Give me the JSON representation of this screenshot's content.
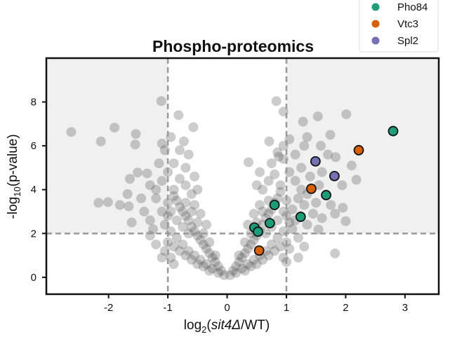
{
  "chart_data": {
    "type": "scatter",
    "title": "Phospho-proteomics",
    "xlabel": {
      "prefix": "log",
      "sub": "2",
      "open": "(",
      "italic": "sit4Δ",
      "rest": "/WT)"
    },
    "ylabel": {
      "prefix": "-log",
      "sub": "10",
      "rest": "(p-value)"
    },
    "xlim": [
      -3.05,
      3.57
    ],
    "ylim": [
      -0.77,
      10.0
    ],
    "xticks": [
      -2,
      -1,
      0,
      1,
      2,
      3
    ],
    "yticks": [
      0,
      2,
      4,
      6,
      8
    ],
    "xtick_labels": [
      "-2",
      "-1",
      "0",
      "1",
      "2",
      "3"
    ],
    "ytick_labels": [
      "0",
      "2",
      "4",
      "6",
      "8"
    ],
    "thresholds": {
      "x": [
        -1,
        1
      ],
      "y": 2
    },
    "shaded_region_color": "#f0f0f0",
    "grid": false,
    "legend_position": "top-right",
    "background_color": "#555555",
    "background_points": [
      [
        -2.63,
        6.63
      ],
      [
        -1.9,
        6.83
      ],
      [
        -2.13,
        6.2
      ],
      [
        -1.54,
        6.54
      ],
      [
        -1.55,
        6.06
      ],
      [
        -1.11,
        8.04
      ],
      [
        -0.82,
        7.4
      ],
      [
        -0.57,
        6.85
      ],
      [
        -0.73,
        6.2
      ],
      [
        -2.17,
        3.4
      ],
      [
        -2.01,
        3.43
      ],
      [
        -1.81,
        3.3
      ],
      [
        -1.66,
        3.24
      ],
      [
        -1.68,
        3.8
      ],
      [
        -1.64,
        4.49
      ],
      [
        -1.51,
        4.78
      ],
      [
        -1.35,
        4.74
      ],
      [
        -1.61,
        2.5
      ],
      [
        1.53,
        7.34
      ],
      [
        2.01,
        7.44
      ],
      [
        1.28,
        7.1
      ],
      [
        1.74,
        6.5
      ],
      [
        2.1,
        5.1
      ],
      [
        2.18,
        4.45
      ],
      [
        2.0,
        2.56
      ],
      [
        1.82,
        1.09
      ],
      [
        1.94,
        4.2
      ],
      [
        1.83,
        5.48
      ],
      [
        1.58,
        6.0
      ],
      [
        0.71,
        6.2
      ],
      [
        0.87,
        5.5
      ],
      [
        0.36,
        5.25
      ],
      [
        1.35,
        6.4
      ],
      [
        1.95,
        3.17
      ],
      [
        1.82,
        2.9
      ],
      [
        1.54,
        2.18
      ],
      [
        0.83,
        8.04
      ],
      [
        0.95,
        7.56
      ],
      [
        -0.05,
        0.1
      ],
      [
        -0.1,
        0.3
      ],
      [
        -0.15,
        0.5
      ],
      [
        -0.2,
        0.7
      ],
      [
        -0.25,
        0.9
      ],
      [
        -0.3,
        1.1
      ],
      [
        -0.35,
        1.3
      ],
      [
        -0.4,
        1.5
      ],
      [
        -0.45,
        1.7
      ],
      [
        -0.5,
        1.9
      ],
      [
        -0.55,
        2.1
      ],
      [
        -0.6,
        2.3
      ],
      [
        -0.65,
        2.6
      ],
      [
        -0.7,
        2.8
      ],
      [
        -0.75,
        3.0
      ],
      [
        -0.8,
        3.2
      ],
      [
        -0.85,
        3.5
      ],
      [
        -0.9,
        3.7
      ],
      [
        -0.15,
        0.2
      ],
      [
        -0.25,
        0.4
      ],
      [
        -0.35,
        0.6
      ],
      [
        -0.45,
        0.8
      ],
      [
        -0.55,
        1.0
      ],
      [
        -0.65,
        1.2
      ],
      [
        -0.75,
        1.5
      ],
      [
        -0.85,
        1.8
      ],
      [
        -0.95,
        2.1
      ],
      [
        -1.05,
        2.4
      ],
      [
        -0.2,
        1.0
      ],
      [
        -0.3,
        1.6
      ],
      [
        -0.4,
        2.0
      ],
      [
        -0.5,
        2.5
      ],
      [
        -0.6,
        3.0
      ],
      [
        -0.7,
        3.4
      ],
      [
        -0.6,
        3.8
      ],
      [
        -0.7,
        4.2
      ],
      [
        -0.8,
        4.5
      ],
      [
        -0.55,
        4.6
      ],
      [
        -0.9,
        4.0
      ],
      [
        -1.0,
        3.4
      ],
      [
        -1.1,
        3.0
      ],
      [
        -1.0,
        2.8
      ],
      [
        -0.3,
        0.3
      ],
      [
        -0.4,
        0.5
      ],
      [
        -0.5,
        0.6
      ],
      [
        -0.6,
        0.8
      ],
      [
        -0.7,
        1.0
      ],
      [
        -0.8,
        1.2
      ],
      [
        -0.9,
        1.4
      ],
      [
        -1.0,
        1.6
      ],
      [
        -0.95,
        0.9
      ],
      [
        -1.05,
        1.2
      ],
      [
        -0.35,
        2.4
      ],
      [
        -0.45,
        2.9
      ],
      [
        -0.55,
        3.3
      ],
      [
        -0.65,
        2.0
      ],
      [
        -0.75,
        2.3
      ],
      [
        -0.85,
        2.6
      ],
      [
        -0.95,
        3.0
      ],
      [
        -0.5,
        4.0
      ],
      [
        -0.7,
        5.0
      ],
      [
        -0.9,
        5.2
      ],
      [
        -1.0,
        4.8
      ],
      [
        -1.1,
        4.4
      ],
      [
        -1.2,
        4.0
      ],
      [
        0.05,
        0.1
      ],
      [
        0.1,
        0.3
      ],
      [
        0.15,
        0.5
      ],
      [
        0.2,
        0.7
      ],
      [
        0.25,
        0.9
      ],
      [
        0.3,
        1.1
      ],
      [
        0.35,
        1.3
      ],
      [
        0.4,
        1.5
      ],
      [
        0.45,
        1.7
      ],
      [
        0.5,
        1.9
      ],
      [
        0.55,
        2.1
      ],
      [
        0.6,
        2.4
      ],
      [
        0.65,
        2.7
      ],
      [
        0.7,
        2.9
      ],
      [
        0.75,
        3.1
      ],
      [
        0.8,
        3.4
      ],
      [
        0.85,
        3.6
      ],
      [
        0.9,
        3.9
      ],
      [
        0.15,
        0.2
      ],
      [
        0.25,
        0.4
      ],
      [
        0.35,
        0.6
      ],
      [
        0.45,
        0.8
      ],
      [
        0.55,
        1.0
      ],
      [
        0.65,
        1.2
      ],
      [
        0.75,
        1.5
      ],
      [
        0.85,
        1.8
      ],
      [
        0.95,
        2.1
      ],
      [
        1.05,
        2.5
      ],
      [
        0.2,
        1.0
      ],
      [
        0.3,
        1.6
      ],
      [
        0.4,
        2.0
      ],
      [
        0.5,
        2.5
      ],
      [
        0.6,
        3.0
      ],
      [
        0.7,
        3.5
      ],
      [
        0.6,
        4.0
      ],
      [
        0.7,
        4.4
      ],
      [
        0.8,
        4.7
      ],
      [
        0.55,
        4.8
      ],
      [
        0.9,
        4.2
      ],
      [
        1.0,
        3.5
      ],
      [
        1.1,
        3.1
      ],
      [
        1.0,
        2.8
      ],
      [
        0.3,
        0.3
      ],
      [
        0.4,
        0.5
      ],
      [
        0.5,
        0.6
      ],
      [
        0.6,
        0.8
      ],
      [
        0.7,
        1.0
      ],
      [
        0.8,
        1.2
      ],
      [
        0.9,
        1.4
      ],
      [
        1.0,
        1.6
      ],
      [
        0.95,
        0.9
      ],
      [
        1.05,
        1.3
      ],
      [
        0.35,
        2.4
      ],
      [
        0.45,
        2.9
      ],
      [
        0.55,
        3.3
      ],
      [
        0.65,
        2.0
      ],
      [
        0.75,
        2.3
      ],
      [
        0.85,
        2.6
      ],
      [
        0.95,
        3.0
      ],
      [
        0.5,
        4.2
      ],
      [
        0.75,
        5.2
      ],
      [
        0.95,
        5.4
      ],
      [
        1.05,
        4.8
      ],
      [
        1.15,
        4.4
      ],
      [
        1.25,
        4.0
      ],
      [
        1.2,
        3.6
      ],
      [
        1.3,
        3.3
      ],
      [
        1.15,
        2.6
      ],
      [
        1.1,
        2.2
      ],
      [
        1.2,
        1.8
      ],
      [
        -1.3,
        2.6
      ],
      [
        -1.25,
        2.2
      ],
      [
        -1.4,
        3.0
      ],
      [
        -1.2,
        3.6
      ],
      [
        -1.45,
        3.6
      ],
      [
        -1.3,
        4.2
      ],
      [
        -1.15,
        5.2
      ],
      [
        -1.05,
        5.8
      ],
      [
        -1.1,
        6.1
      ],
      [
        -0.95,
        6.4
      ],
      [
        -0.8,
        5.8
      ],
      [
        -0.65,
        5.6
      ],
      [
        -1.2,
        1.5
      ],
      [
        -1.1,
        0.9
      ],
      [
        -0.9,
        0.6
      ],
      [
        -1.3,
        1.9
      ],
      [
        1.35,
        2.4
      ],
      [
        1.45,
        2.9
      ],
      [
        1.5,
        3.4
      ],
      [
        1.35,
        3.8
      ],
      [
        1.55,
        4.2
      ],
      [
        1.4,
        4.6
      ],
      [
        1.25,
        5.0
      ],
      [
        1.15,
        5.6
      ],
      [
        1.3,
        6.0
      ],
      [
        1.05,
        6.3
      ],
      [
        0.95,
        6.0
      ],
      [
        0.85,
        5.7
      ],
      [
        1.6,
        4.8
      ],
      [
        1.7,
        5.6
      ],
      [
        1.6,
        2.7
      ],
      [
        1.75,
        3.3
      ],
      [
        1.3,
        1.4
      ],
      [
        1.2,
        0.9
      ],
      [
        1.0,
        0.7
      ]
    ],
    "series": [
      {
        "name": "Pho84",
        "color": "#1b9e77",
        "points": [
          [
            2.8,
            6.67
          ],
          [
            1.67,
            3.75
          ],
          [
            1.24,
            2.76
          ],
          [
            0.8,
            3.3
          ],
          [
            0.72,
            2.47
          ],
          [
            0.46,
            2.27
          ],
          [
            0.52,
            2.08
          ]
        ]
      },
      {
        "name": "Vtc3",
        "color": "#d95f02",
        "points": [
          [
            2.22,
            5.8
          ],
          [
            1.42,
            4.04
          ],
          [
            0.54,
            1.22
          ]
        ]
      },
      {
        "name": "Spl2",
        "color": "#7570b3",
        "points": [
          [
            1.49,
            5.29
          ],
          [
            1.81,
            4.62
          ]
        ]
      }
    ]
  }
}
